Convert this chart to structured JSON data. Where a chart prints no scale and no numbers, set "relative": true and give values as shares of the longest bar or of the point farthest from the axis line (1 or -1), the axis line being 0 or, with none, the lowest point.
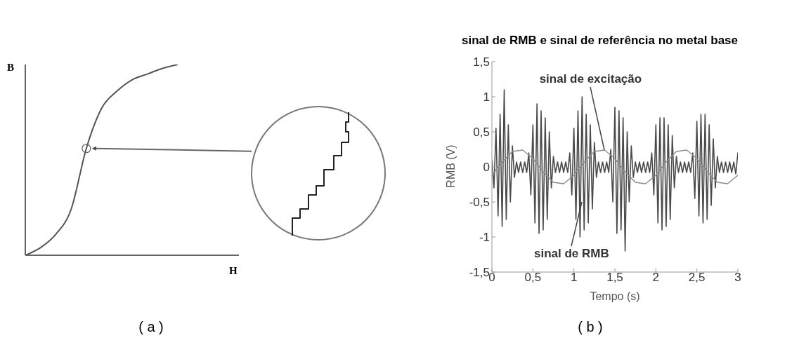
{
  "chart_data": [
    {
      "type": "line",
      "relative": true,
      "xlabel": "H",
      "ylabel": "B",
      "annotations": [
        "( a )"
      ],
      "categories": [
        null,
        null,
        null,
        null,
        null,
        null,
        null,
        null,
        null,
        null,
        null,
        null,
        null,
        null,
        null
      ],
      "series": [
        {
          "color": "#555555",
          "values": [
            0,
            0.04,
            0.11,
            0.24,
            0.56,
            0.77,
            0.86,
            0.92,
            0.95,
            0.98,
            1,
            null,
            null,
            null,
            null
          ]
        }
      ]
    },
    {
      "type": "line",
      "title": "sinal de RMB e sinal de referência no metal base",
      "xlabel": "Tempo (s)",
      "ylabel": "RMB (V)",
      "annotations": [
        "( b )",
        {
          "text": "sinal de excitação",
          "x": 1.375,
          "y": 0.24
        },
        {
          "text": "sinal de RMB",
          "x": 1.1,
          "y": -0.5
        }
      ],
      "xlim": [
        0,
        3
      ],
      "xticks": [
        0,
        {
          "value": 0.5,
          "label": "0,5"
        },
        1,
        {
          "value": 1.5,
          "label": "1,5"
        },
        2,
        {
          "value": 2.5,
          "label": "2,5"
        },
        3
      ],
      "ylim": [
        -1.5,
        1.5
      ],
      "yticks": [
        {
          "value": -1.5,
          "label": "-1,5"
        },
        -1,
        {
          "value": -0.5,
          "label": "-0,5"
        },
        0,
        {
          "value": 0.5,
          "label": "0,5"
        },
        1,
        {
          "value": 1.5,
          "label": "1,5"
        }
      ],
      "series": [
        {
          "color": "#4a4a4a",
          "x": [
            0,
            0.025,
            0.05,
            0.075,
            0.1,
            0.125,
            0.15,
            0.175,
            0.2,
            0.225,
            0.25,
            0.275,
            0.3,
            0.325,
            0.35,
            0.375,
            0.4,
            0.425,
            0.45,
            0.475,
            0.5,
            0.525,
            0.55,
            0.575,
            0.6,
            0.625,
            0.65,
            0.675,
            0.7,
            0.725,
            0.75,
            0.775,
            0.8,
            0.825,
            0.85,
            0.875,
            0.9,
            0.925,
            0.95,
            0.975,
            1,
            1.025,
            1.05,
            1.075,
            1.1,
            1.125,
            1.15,
            1.175,
            1.2,
            1.225,
            1.25,
            1.275,
            1.3,
            1.325,
            1.35,
            1.375,
            1.4,
            1.425,
            1.45,
            1.475,
            1.5,
            1.525,
            1.55,
            1.575,
            1.6,
            1.625,
            1.65,
            1.675,
            1.7,
            1.725,
            1.75,
            1.775,
            1.8,
            1.825,
            1.85,
            1.875,
            1.9,
            1.925,
            1.95,
            1.975,
            2,
            2.025,
            2.05,
            2.075,
            2.1,
            2.125,
            2.15,
            2.175,
            2.2,
            2.225,
            2.25,
            2.275,
            2.3,
            2.325,
            2.35,
            2.375,
            2.4,
            2.425,
            2.45,
            2.475,
            2.5,
            2.525,
            2.55,
            2.575,
            2.6,
            2.625,
            2.65,
            2.675,
            2.7,
            2.725,
            2.75,
            2.775,
            2.8,
            2.825,
            2.85,
            2.875,
            2.9,
            2.925,
            2.95,
            2.975,
            3
          ],
          "values": [
            0.1,
            -0.3,
            0.55,
            -0.7,
            0.75,
            -0.85,
            1.1,
            -0.75,
            0.6,
            -0.5,
            0.3,
            -0.15,
            0.07,
            -0.08,
            0.07,
            -0.08,
            0.07,
            -0.08,
            0.2,
            -0.4,
            0.6,
            -0.8,
            0.9,
            -0.95,
            0.8,
            -0.9,
            0.7,
            -0.75,
            0.5,
            -0.3,
            0.15,
            -0.08,
            0.07,
            -0.08,
            0.07,
            -0.08,
            0.07,
            -0.08,
            0.2,
            -0.4,
            0.55,
            -0.75,
            0.8,
            -1,
            1,
            -0.9,
            0.75,
            -0.8,
            0.6,
            -0.6,
            0.35,
            -0.15,
            0.07,
            -0.08,
            0.07,
            -0.08,
            0.07,
            -0.08,
            0.25,
            -0.5,
            0.85,
            -0.95,
            0.8,
            -0.9,
            0.7,
            -1.2,
            0.5,
            -0.5,
            0.3,
            -0.15,
            0.07,
            -0.08,
            0.07,
            -0.08,
            0.07,
            -0.08,
            0.07,
            -0.08,
            0.2,
            -0.4,
            0.6,
            -0.8,
            0.7,
            -0.9,
            0.7,
            -0.85,
            0.6,
            -0.75,
            0.45,
            -0.3,
            0.15,
            -0.08,
            0.07,
            -0.08,
            0.07,
            -0.08,
            0.07,
            -0.08,
            0.2,
            -0.45,
            0.65,
            -0.7,
            0.75,
            -0.8,
            0.75,
            -0.75,
            0.6,
            -0.55,
            0.4,
            -0.3,
            0.15,
            -0.08,
            0.07,
            -0.08,
            0.07,
            -0.08,
            0.07,
            -0.08,
            0.07,
            -0.1,
            0.2
          ]
        },
        {
          "color": "#8c8c8c",
          "x": [
            0,
            0.125,
            0.25,
            0.375,
            0.5,
            0.625,
            0.75,
            0.875,
            1,
            1.125,
            1.25,
            1.375,
            1.5,
            1.625,
            1.75,
            1.875,
            2,
            2.125,
            2.25,
            2.375,
            2.5,
            2.625,
            2.75,
            2.875,
            3
          ],
          "values": [
            -0.12,
            0.07,
            0.22,
            0.24,
            0.12,
            -0.07,
            -0.22,
            -0.24,
            -0.12,
            0.07,
            0.22,
            0.24,
            0.12,
            -0.07,
            -0.22,
            -0.24,
            -0.12,
            0.07,
            0.22,
            0.24,
            0.12,
            -0.07,
            -0.22,
            -0.24,
            -0.12
          ]
        }
      ]
    }
  ]
}
